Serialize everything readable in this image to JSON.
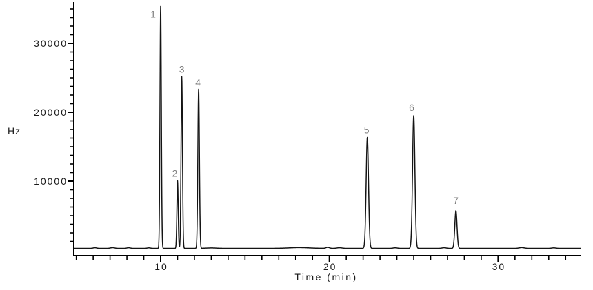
{
  "figure": {
    "background_color": "#ffffff",
    "trace_color": "#141414",
    "axis_color": "#000000",
    "tick_label_color": "#1a1a1a",
    "peak_label_color": "#7f7f7f",
    "y_unit_label": "Hz",
    "x_axis_title": "Time (min)"
  },
  "chart_data": {
    "type": "line",
    "title": "",
    "xlabel": "Time (min)",
    "ylabel": "Hz",
    "x_range_min": [
      4.85,
      34.93
    ],
    "y_range_hz": [
      0,
      36000
    ],
    "x_major_ticks": [
      10,
      20,
      30
    ],
    "x_tick_labels": [
      "10",
      "20",
      "30"
    ],
    "x_minor_tick_step_min": 1,
    "x_minor_tick_first": 5,
    "x_minor_tick_last": 34,
    "y_major_ticks": [
      10000,
      20000,
      30000
    ],
    "y_tick_labels": [
      "10000",
      "20000",
      "30000"
    ],
    "y_minor_tick_step_hz": 1250,
    "y_minor_tick_max_hz": 35000,
    "grid": "off",
    "legend": "none",
    "baseline_hz": 250,
    "peaks": [
      {
        "label": "1",
        "time_min": 10.0,
        "height_hz": 35200,
        "sigma_min": 0.04,
        "label_dx": -11,
        "label_dy": 17
      },
      {
        "label": "2",
        "time_min": 11.0,
        "height_hz": 9800,
        "sigma_min": 0.038,
        "label_dx": -4,
        "label_dy": -6
      },
      {
        "label": "3",
        "time_min": 11.25,
        "height_hz": 24900,
        "sigma_min": 0.042,
        "label_dx": 0,
        "label_dy": -6
      },
      {
        "label": "4",
        "time_min": 12.25,
        "height_hz": 23100,
        "sigma_min": 0.046,
        "label_dx": -1,
        "label_dy": -5
      },
      {
        "label": "5",
        "time_min": 22.25,
        "height_hz": 16100,
        "sigma_min": 0.07,
        "label_dx": -1,
        "label_dy": -6
      },
      {
        "label": "6",
        "time_min": 25.0,
        "height_hz": 19250,
        "sigma_min": 0.07,
        "label_dx": -3,
        "label_dy": -7
      },
      {
        "label": "7",
        "time_min": 27.5,
        "height_hz": 5470,
        "sigma_min": 0.065,
        "label_dx": 0,
        "label_dy": -10
      }
    ],
    "noise_bumps": [
      {
        "time_min": 6.1,
        "height_hz": 90,
        "sigma_min": 0.1
      },
      {
        "time_min": 7.15,
        "height_hz": 100,
        "sigma_min": 0.12
      },
      {
        "time_min": 8.1,
        "height_hz": 90,
        "sigma_min": 0.1
      },
      {
        "time_min": 9.3,
        "height_hz": 70,
        "sigma_min": 0.1
      },
      {
        "time_min": 13.0,
        "height_hz": 60,
        "sigma_min": 0.3
      },
      {
        "time_min": 18.2,
        "height_hz": 110,
        "sigma_min": 0.6
      },
      {
        "time_min": 19.9,
        "height_hz": 150,
        "sigma_min": 0.1
      },
      {
        "time_min": 20.6,
        "height_hz": 90,
        "sigma_min": 0.15
      },
      {
        "time_min": 23.9,
        "height_hz": 80,
        "sigma_min": 0.12
      },
      {
        "time_min": 26.8,
        "height_hz": 90,
        "sigma_min": 0.12
      },
      {
        "time_min": 31.4,
        "height_hz": 110,
        "sigma_min": 0.15
      },
      {
        "time_min": 33.3,
        "height_hz": 70,
        "sigma_min": 0.12
      }
    ]
  }
}
